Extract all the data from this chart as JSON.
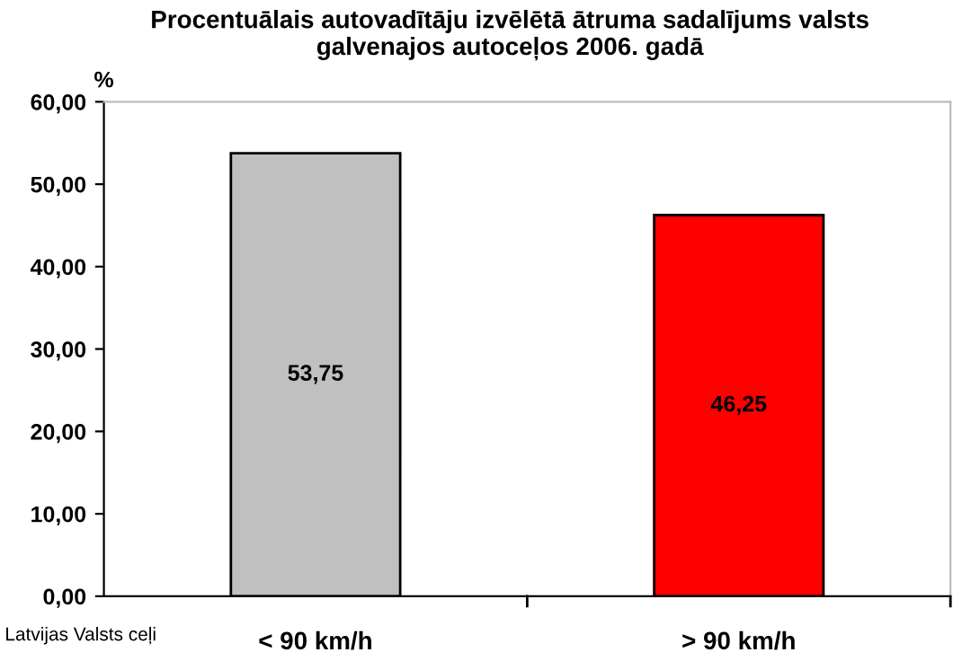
{
  "chart_data": {
    "type": "bar",
    "title": "Procentuālais autovadītāju izvēlētā ātruma sadalījums valsts\ngalvenajos autoceļos 2006. gadā",
    "ylabel": "%",
    "categories": [
      "< 90 km/h",
      "> 90 km/h"
    ],
    "values": [
      53.75,
      46.25
    ],
    "colors": [
      "#c0c0c0",
      "#ff0000"
    ],
    "value_labels": [
      "53,75",
      "46,25"
    ],
    "ylim": [
      0,
      60
    ],
    "yticks": [
      {
        "value": 0,
        "label": "0,00"
      },
      {
        "value": 10,
        "label": "10,00"
      },
      {
        "value": 20,
        "label": "20,00"
      },
      {
        "value": 30,
        "label": "30,00"
      },
      {
        "value": 40,
        "label": "40,00"
      },
      {
        "value": 50,
        "label": "50,00"
      },
      {
        "value": 60,
        "label": "60,00"
      }
    ],
    "annotations": [
      "Latvijas Valsts ceļi"
    ],
    "grid": false,
    "legend": false
  }
}
